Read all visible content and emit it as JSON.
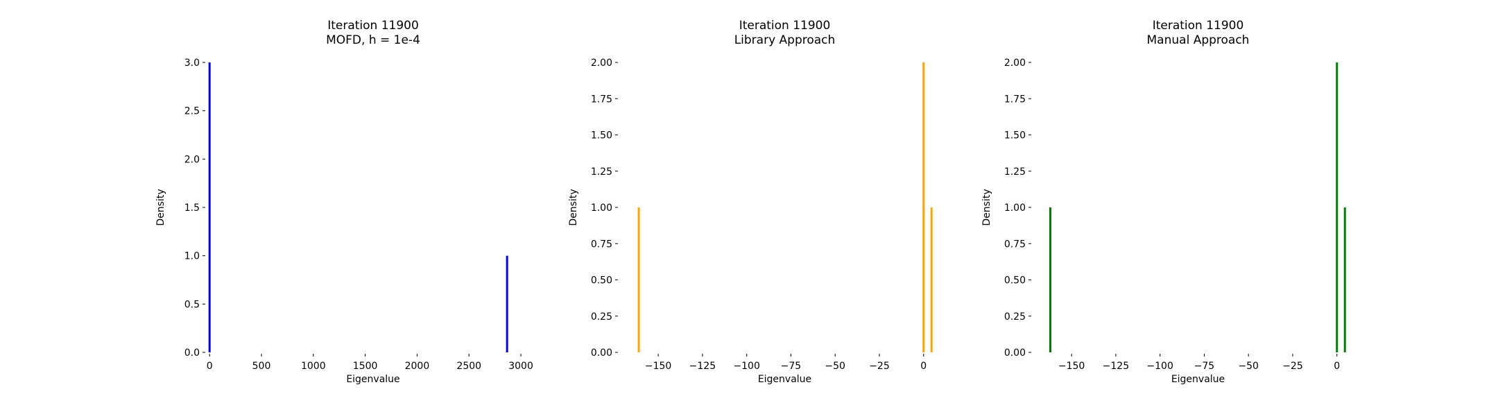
{
  "chart_data": [
    {
      "type": "bar",
      "title": "Iteration 11900",
      "subtitle": "MOFD, h = 1e-4",
      "xlabel": "Eigenvalue",
      "ylabel": "Density",
      "color": "#0000ff",
      "xlim": [
        -28,
        3180
      ],
      "ylim": [
        0,
        3.0
      ],
      "xticks": [
        0,
        500,
        1000,
        1500,
        2000,
        2500,
        3000
      ],
      "xtick_labels": [
        "0",
        "500",
        "1000",
        "1500",
        "2000",
        "2500",
        "3000"
      ],
      "yticks": [
        0,
        0.5,
        1.0,
        1.5,
        2.0,
        2.5,
        3.0
      ],
      "ytick_labels": [
        "0.0",
        "0.5",
        "1.0",
        "1.5",
        "2.0",
        "2.5",
        "3.0"
      ],
      "bars": [
        {
          "x": 0,
          "density": 3.0
        },
        {
          "x": 2867,
          "density": 1.0
        }
      ],
      "grid": false
    },
    {
      "type": "bar",
      "title": "Iteration 11900",
      "subtitle": "Library Approach",
      "xlabel": "Eigenvalue",
      "ylabel": "Density",
      "color": "#ffa500",
      "xlim": [
        -172,
        15
      ],
      "ylim": [
        0,
        2.0
      ],
      "xticks": [
        -150,
        -125,
        -100,
        -75,
        -50,
        -25,
        0
      ],
      "xtick_labels": [
        "−150",
        "−125",
        "−100",
        "−75",
        "−50",
        "−25",
        "0"
      ],
      "yticks": [
        0,
        0.25,
        0.5,
        0.75,
        1.0,
        1.25,
        1.5,
        1.75,
        2.0
      ],
      "ytick_labels": [
        "0.00",
        "0.25",
        "0.50",
        "0.75",
        "1.00",
        "1.25",
        "1.50",
        "1.75",
        "2.00"
      ],
      "bars": [
        {
          "x": -161,
          "density": 1.0
        },
        {
          "x": 0,
          "density": 2.0
        },
        {
          "x": 4.5,
          "density": 1.0
        }
      ],
      "grid": false
    },
    {
      "type": "bar",
      "title": "Iteration 11900",
      "subtitle": "Manual Approach",
      "xlabel": "Eigenvalue",
      "ylabel": "Density",
      "color": "#008000",
      "xlim": [
        -172,
        15
      ],
      "ylim": [
        0,
        2.0
      ],
      "xticks": [
        -150,
        -125,
        -100,
        -75,
        -50,
        -25,
        0
      ],
      "xtick_labels": [
        "−150",
        "−125",
        "−100",
        "−75",
        "−50",
        "−25",
        "0"
      ],
      "yticks": [
        0,
        0.25,
        0.5,
        0.75,
        1.0,
        1.25,
        1.5,
        1.75,
        2.0
      ],
      "ytick_labels": [
        "0.00",
        "0.25",
        "0.50",
        "0.75",
        "1.00",
        "1.25",
        "1.50",
        "1.75",
        "2.00"
      ],
      "bars": [
        {
          "x": -162,
          "density": 1.0
        },
        {
          "x": 0,
          "density": 2.0
        },
        {
          "x": 4.5,
          "density": 1.0
        }
      ],
      "grid": false
    }
  ]
}
